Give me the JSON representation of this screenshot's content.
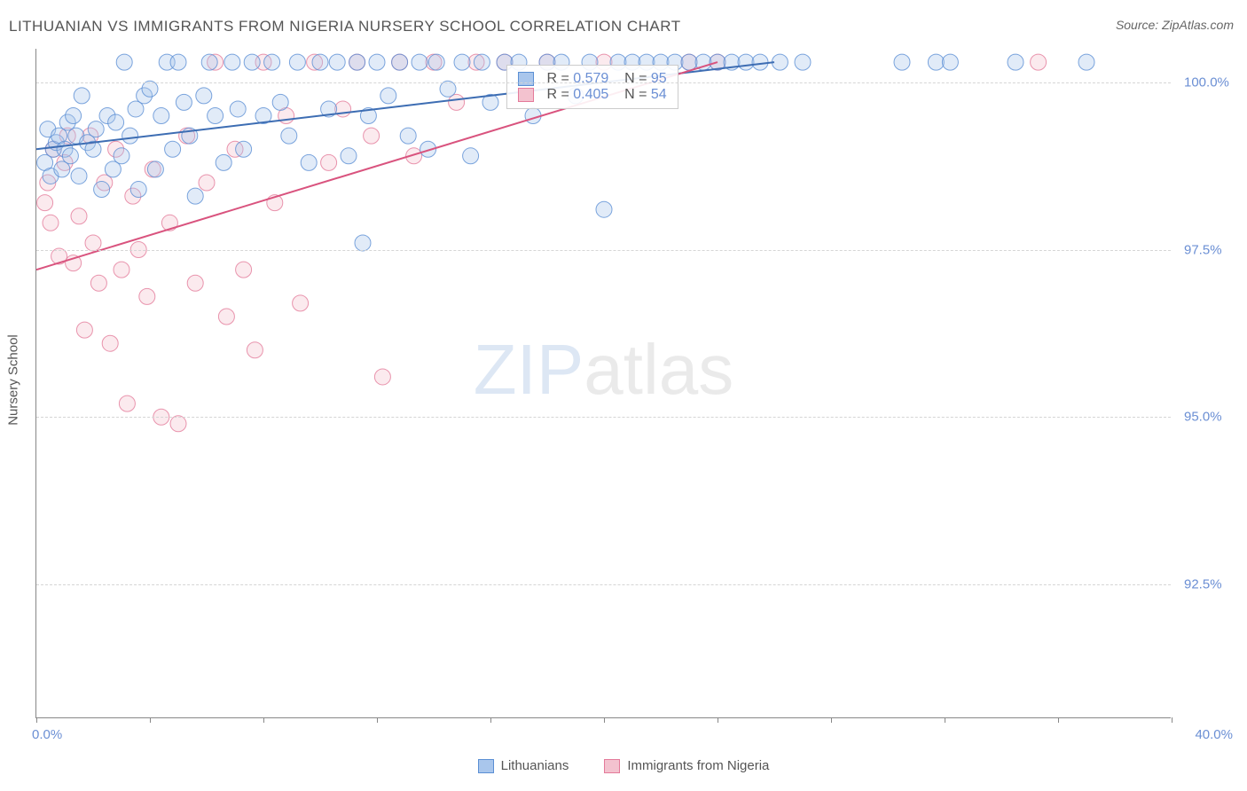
{
  "title": "LITHUANIAN VS IMMIGRANTS FROM NIGERIA NURSERY SCHOOL CORRELATION CHART",
  "source": "Source: ZipAtlas.com",
  "y_axis_label": "Nursery School",
  "watermark_zip": "ZIP",
  "watermark_atlas": "atlas",
  "chart": {
    "type": "scatter",
    "xlim": [
      0,
      40
    ],
    "ylim": [
      90.5,
      100.5
    ],
    "x_min_label": "0.0%",
    "x_max_label": "40.0%",
    "x_ticks": [
      0,
      4,
      8,
      12,
      16,
      20,
      24,
      28,
      32,
      36,
      40
    ],
    "y_ticks": [
      92.5,
      95.0,
      97.5,
      100.0
    ],
    "y_tick_labels": [
      "92.5%",
      "95.0%",
      "97.5%",
      "100.0%"
    ],
    "grid_color": "#d5d5d5",
    "background_color": "#ffffff",
    "marker_radius": 9,
    "marker_fill_opacity": 0.35,
    "marker_stroke_opacity": 0.8,
    "line_width": 2,
    "series": [
      {
        "name": "Lithuanians",
        "color_fill": "#a9c6ec",
        "color_stroke": "#5b8fd4",
        "line_color": "#3d6db3",
        "R": 0.579,
        "N": 95,
        "trend": {
          "x1": 0,
          "y1": 99.0,
          "x2": 26,
          "y2": 100.3
        },
        "points": [
          [
            0.3,
            98.8
          ],
          [
            0.4,
            99.3
          ],
          [
            0.5,
            98.6
          ],
          [
            0.6,
            99.0
          ],
          [
            0.7,
            99.1
          ],
          [
            0.8,
            99.2
          ],
          [
            0.9,
            98.7
          ],
          [
            1.0,
            99.0
          ],
          [
            1.1,
            99.4
          ],
          [
            1.2,
            98.9
          ],
          [
            1.3,
            99.5
          ],
          [
            1.4,
            99.2
          ],
          [
            1.5,
            98.6
          ],
          [
            1.6,
            99.8
          ],
          [
            1.8,
            99.1
          ],
          [
            2.0,
            99.0
          ],
          [
            2.1,
            99.3
          ],
          [
            2.3,
            98.4
          ],
          [
            2.5,
            99.5
          ],
          [
            2.7,
            98.7
          ],
          [
            2.8,
            99.4
          ],
          [
            3.0,
            98.9
          ],
          [
            3.1,
            100.3
          ],
          [
            3.3,
            99.2
          ],
          [
            3.5,
            99.6
          ],
          [
            3.6,
            98.4
          ],
          [
            3.8,
            99.8
          ],
          [
            4.0,
            99.9
          ],
          [
            4.2,
            98.7
          ],
          [
            4.4,
            99.5
          ],
          [
            4.6,
            100.3
          ],
          [
            4.8,
            99.0
          ],
          [
            5.0,
            100.3
          ],
          [
            5.2,
            99.7
          ],
          [
            5.4,
            99.2
          ],
          [
            5.6,
            98.3
          ],
          [
            5.9,
            99.8
          ],
          [
            6.1,
            100.3
          ],
          [
            6.3,
            99.5
          ],
          [
            6.6,
            98.8
          ],
          [
            6.9,
            100.3
          ],
          [
            7.1,
            99.6
          ],
          [
            7.3,
            99.0
          ],
          [
            7.6,
            100.3
          ],
          [
            8.0,
            99.5
          ],
          [
            8.3,
            100.3
          ],
          [
            8.6,
            99.7
          ],
          [
            8.9,
            99.2
          ],
          [
            9.2,
            100.3
          ],
          [
            9.6,
            98.8
          ],
          [
            10.0,
            100.3
          ],
          [
            10.3,
            99.6
          ],
          [
            10.6,
            100.3
          ],
          [
            11.0,
            98.9
          ],
          [
            11.3,
            100.3
          ],
          [
            11.5,
            97.6
          ],
          [
            11.7,
            99.5
          ],
          [
            12.0,
            100.3
          ],
          [
            12.4,
            99.8
          ],
          [
            12.8,
            100.3
          ],
          [
            13.1,
            99.2
          ],
          [
            13.5,
            100.3
          ],
          [
            13.8,
            99.0
          ],
          [
            14.1,
            100.3
          ],
          [
            14.5,
            99.9
          ],
          [
            15.0,
            100.3
          ],
          [
            15.3,
            98.9
          ],
          [
            15.7,
            100.3
          ],
          [
            16.0,
            99.7
          ],
          [
            16.5,
            100.3
          ],
          [
            17.0,
            100.3
          ],
          [
            17.5,
            99.5
          ],
          [
            18.0,
            100.3
          ],
          [
            18.5,
            100.3
          ],
          [
            19.0,
            99.8
          ],
          [
            19.5,
            100.3
          ],
          [
            20.0,
            98.1
          ],
          [
            20.5,
            100.3
          ],
          [
            21.0,
            100.3
          ],
          [
            21.5,
            100.3
          ],
          [
            22.0,
            100.3
          ],
          [
            22.5,
            100.3
          ],
          [
            23.0,
            100.3
          ],
          [
            23.5,
            100.3
          ],
          [
            24.0,
            100.3
          ],
          [
            24.5,
            100.3
          ],
          [
            25.0,
            100.3
          ],
          [
            25.5,
            100.3
          ],
          [
            26.2,
            100.3
          ],
          [
            27.0,
            100.3
          ],
          [
            30.5,
            100.3
          ],
          [
            31.7,
            100.3
          ],
          [
            32.2,
            100.3
          ],
          [
            34.5,
            100.3
          ],
          [
            37.0,
            100.3
          ]
        ]
      },
      {
        "name": "Immigrants from Nigeria",
        "color_fill": "#f3c2cf",
        "color_stroke": "#e47a9a",
        "line_color": "#d9537e",
        "R": 0.405,
        "N": 54,
        "trend": {
          "x1": 0,
          "y1": 97.2,
          "x2": 24,
          "y2": 100.3
        },
        "points": [
          [
            0.3,
            98.2
          ],
          [
            0.4,
            98.5
          ],
          [
            0.5,
            97.9
          ],
          [
            0.6,
            99.0
          ],
          [
            0.8,
            97.4
          ],
          [
            1.0,
            98.8
          ],
          [
            1.1,
            99.2
          ],
          [
            1.3,
            97.3
          ],
          [
            1.5,
            98.0
          ],
          [
            1.7,
            96.3
          ],
          [
            1.9,
            99.2
          ],
          [
            2.0,
            97.6
          ],
          [
            2.2,
            97.0
          ],
          [
            2.4,
            98.5
          ],
          [
            2.6,
            96.1
          ],
          [
            2.8,
            99.0
          ],
          [
            3.0,
            97.2
          ],
          [
            3.2,
            95.2
          ],
          [
            3.4,
            98.3
          ],
          [
            3.6,
            97.5
          ],
          [
            3.9,
            96.8
          ],
          [
            4.1,
            98.7
          ],
          [
            4.4,
            95.0
          ],
          [
            4.7,
            97.9
          ],
          [
            5.0,
            94.9
          ],
          [
            5.3,
            99.2
          ],
          [
            5.6,
            97.0
          ],
          [
            6.0,
            98.5
          ],
          [
            6.3,
            100.3
          ],
          [
            6.7,
            96.5
          ],
          [
            7.0,
            99.0
          ],
          [
            7.3,
            97.2
          ],
          [
            7.7,
            96.0
          ],
          [
            8.0,
            100.3
          ],
          [
            8.4,
            98.2
          ],
          [
            8.8,
            99.5
          ],
          [
            9.3,
            96.7
          ],
          [
            9.8,
            100.3
          ],
          [
            10.3,
            98.8
          ],
          [
            10.8,
            99.6
          ],
          [
            11.3,
            100.3
          ],
          [
            11.8,
            99.2
          ],
          [
            12.2,
            95.6
          ],
          [
            12.8,
            100.3
          ],
          [
            13.3,
            98.9
          ],
          [
            14.0,
            100.3
          ],
          [
            14.8,
            99.7
          ],
          [
            15.5,
            100.3
          ],
          [
            16.5,
            100.3
          ],
          [
            18.0,
            100.3
          ],
          [
            20.0,
            100.3
          ],
          [
            23.0,
            100.3
          ],
          [
            24.0,
            100.3
          ],
          [
            35.3,
            100.3
          ]
        ]
      }
    ]
  },
  "legend": {
    "series1_label": "Lithuanians",
    "series2_label": "Immigrants from Nigeria"
  },
  "stats_labels": {
    "R": "R =",
    "N": "N ="
  }
}
